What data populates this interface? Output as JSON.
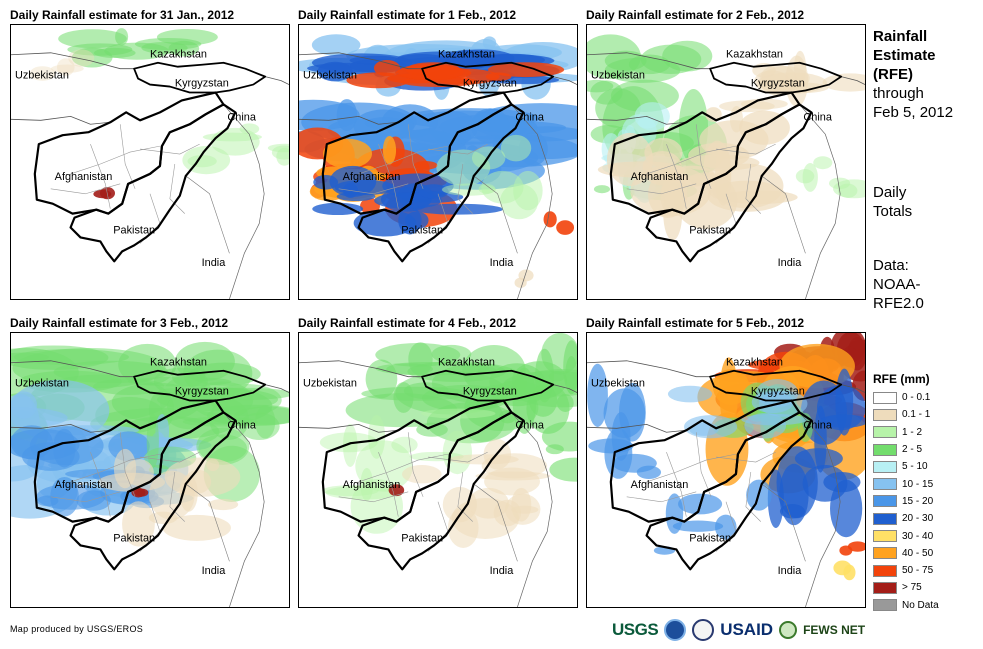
{
  "panels": [
    {
      "title": "Daily Rainfall estimate for 31 Jan., 2012",
      "pattern": "dry"
    },
    {
      "title": "Daily Rainfall estimate for 1 Feb., 2012",
      "pattern": "heavy-west"
    },
    {
      "title": "Daily Rainfall estimate for 2 Feb., 2012",
      "pattern": "light"
    },
    {
      "title": "Daily Rainfall estimate for 3 Feb., 2012",
      "pattern": "moderate-west"
    },
    {
      "title": "Daily Rainfall estimate for 4 Feb., 2012",
      "pattern": "light-north"
    },
    {
      "title": "Daily Rainfall estimate for 5 Feb., 2012",
      "pattern": "heavy-east"
    }
  ],
  "countries": {
    "kazakhstan": "Kazakhstan",
    "uzbekistan": "Uzbekistan",
    "kyrgyzstan": "Kyrgyzstan",
    "china": "China",
    "afghanistan": "Afghanistan",
    "pakistan": "Pakistan",
    "india": "India"
  },
  "sidebar": {
    "title_bold": [
      "Rainfall",
      "Estimate",
      "(RFE)"
    ],
    "title_rest": [
      "through",
      "Feb 5, 2012"
    ],
    "totals": [
      "Daily",
      "Totals"
    ],
    "data_source": [
      "Data:",
      "NOAA-",
      "RFE2.0"
    ]
  },
  "legend": {
    "title": "RFE (mm)",
    "items": [
      {
        "label": "0 - 0.1",
        "color": "#ffffff"
      },
      {
        "label": "0.1 - 1",
        "color": "#eedcbc"
      },
      {
        "label": "1 - 2",
        "color": "#b7f3a9"
      },
      {
        "label": "2 - 5",
        "color": "#73dd6d"
      },
      {
        "label": "5 - 10",
        "color": "#b8f0f4"
      },
      {
        "label": "10 - 15",
        "color": "#86c2f0"
      },
      {
        "label": "15 - 20",
        "color": "#4a96e8"
      },
      {
        "label": "20 - 30",
        "color": "#1f5fcf"
      },
      {
        "label": "30 - 40",
        "color": "#ffe066"
      },
      {
        "label": "40 - 50",
        "color": "#ffa21f"
      },
      {
        "label": "50 - 75",
        "color": "#f2430b"
      },
      {
        "label": "> 75",
        "color": "#a31d18"
      },
      {
        "label": "No Data",
        "color": "#999999"
      }
    ]
  },
  "footer": {
    "credit": "Map produced by USGS/EROS",
    "logos": {
      "usgs": "USGS",
      "usaid": "USAID",
      "fews": "FEWS NET"
    }
  }
}
